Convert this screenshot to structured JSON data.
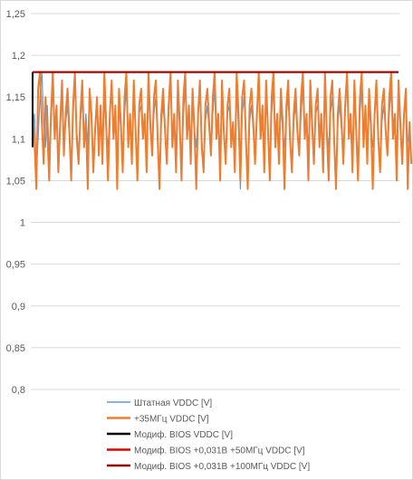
{
  "chart_data": {
    "type": "line",
    "title": "",
    "xlabel": "",
    "ylabel": "",
    "ylim": [
      0.8,
      1.25
    ],
    "ytick_labels": [
      "0,8",
      "0,85",
      "0,9",
      "0,95",
      "1",
      "1,05",
      "1,1",
      "1,15",
      "1,2",
      "1,25"
    ],
    "grid": "horizontal",
    "legend_position": "bottom",
    "n_points": 200,
    "series": [
      {
        "name": "Штатная VDDC [V]",
        "color": "#5b9bd5",
        "values": [
          1.11,
          1.13,
          1.06,
          1.1,
          1.15,
          1.18,
          1.12,
          1.09,
          1.14,
          1.08,
          1.12,
          1.16,
          1.1,
          1.13,
          1.07,
          1.11,
          1.15,
          1.09,
          1.12,
          1.14,
          1.1,
          1.06,
          1.13,
          1.17,
          1.11,
          1.08,
          1.12,
          1.15,
          1.1,
          1.13,
          1.09,
          1.16,
          1.12,
          1.07,
          1.11,
          1.14,
          1.1,
          1.13,
          1.08,
          1.15,
          1.11,
          1.09,
          1.13,
          1.17,
          1.1,
          1.12,
          1.06,
          1.14,
          1.11,
          1.08,
          1.13,
          1.16,
          1.1,
          1.12,
          1.09,
          1.15,
          1.11,
          1.07,
          1.13,
          1.14,
          1.1,
          1.12,
          1.08,
          1.16,
          1.11,
          1.09,
          1.13,
          1.15,
          1.1,
          1.06,
          1.12,
          1.14,
          1.11,
          1.08,
          1.13,
          1.17,
          1.1,
          1.12,
          1.09,
          1.15,
          1.11,
          1.07,
          1.13,
          1.16,
          1.1,
          1.12,
          1.08,
          1.14,
          1.11,
          1.09,
          1.13,
          1.15,
          1.1,
          1.06,
          1.12,
          1.14,
          1.11,
          1.08,
          1.13,
          1.16,
          1.1,
          1.12,
          1.09,
          1.15,
          1.11,
          1.07,
          1.13,
          1.14,
          1.1,
          1.12,
          1.08,
          1.16,
          1.11,
          1.04,
          1.13,
          1.15,
          1.1,
          1.06,
          1.12,
          1.14,
          1.11,
          1.08,
          1.13,
          1.17,
          1.1,
          1.12,
          1.09,
          1.15,
          1.11,
          1.07,
          1.13,
          1.16,
          1.1,
          1.12,
          1.08,
          1.14,
          1.11,
          1.09,
          1.13,
          1.15,
          1.1,
          1.06,
          1.12,
          1.14,
          1.11,
          1.08,
          1.13,
          1.16,
          1.1,
          1.12,
          1.09,
          1.15,
          1.11,
          1.07,
          1.13,
          1.14,
          1.1,
          1.12,
          1.08,
          1.16,
          1.11,
          1.09,
          1.13,
          1.15,
          1.1,
          1.06,
          1.12,
          1.14,
          1.11,
          1.08,
          1.13,
          1.17,
          1.1,
          1.12,
          1.09,
          1.15,
          1.11,
          1.07,
          1.13,
          1.16,
          1.1,
          1.12,
          1.08,
          1.14,
          1.11,
          1.09,
          1.13,
          1.15,
          1.1,
          1.06,
          1.12,
          1.14,
          1.11,
          1.08,
          1.13,
          1.16,
          1.1,
          1.12,
          1.09,
          1.15,
          1.11,
          1.07,
          1.13,
          1.14,
          1.1,
          1.09
        ]
      },
      {
        "name": "+35МГц VDDC [V]",
        "color": "#ed7d31",
        "values": [
          1.13,
          1.1,
          1.04,
          1.16,
          1.18,
          1.12,
          1.07,
          1.15,
          1.11,
          1.05,
          1.13,
          1.18,
          1.1,
          1.14,
          1.06,
          1.12,
          1.17,
          1.08,
          1.13,
          1.16,
          1.11,
          1.05,
          1.14,
          1.18,
          1.1,
          1.07,
          1.13,
          1.17,
          1.09,
          1.12,
          1.04,
          1.16,
          1.13,
          1.06,
          1.11,
          1.15,
          1.08,
          1.14,
          1.07,
          1.18,
          1.12,
          1.05,
          1.13,
          1.17,
          1.1,
          1.14,
          1.04,
          1.16,
          1.12,
          1.06,
          1.15,
          1.18,
          1.09,
          1.13,
          1.07,
          1.17,
          1.11,
          1.05,
          1.14,
          1.16,
          1.1,
          1.13,
          1.06,
          1.18,
          1.12,
          1.08,
          1.15,
          1.17,
          1.1,
          1.04,
          1.13,
          1.16,
          1.11,
          1.07,
          1.14,
          1.18,
          1.09,
          1.13,
          1.06,
          1.17,
          1.12,
          1.05,
          1.15,
          1.18,
          1.1,
          1.14,
          1.07,
          1.16,
          1.11,
          1.04,
          1.13,
          1.17,
          1.09,
          1.06,
          1.14,
          1.16,
          1.12,
          1.08,
          1.15,
          1.18,
          1.1,
          1.13,
          1.05,
          1.17,
          1.11,
          1.07,
          1.14,
          1.16,
          1.09,
          1.12,
          1.06,
          1.18,
          1.13,
          1.05,
          1.15,
          1.17,
          1.1,
          1.04,
          1.14,
          1.16,
          1.12,
          1.07,
          1.13,
          1.18,
          1.1,
          1.14,
          1.06,
          1.17,
          1.11,
          1.05,
          1.15,
          1.18,
          1.09,
          1.13,
          1.07,
          1.16,
          1.12,
          1.04,
          1.14,
          1.17,
          1.1,
          1.06,
          1.13,
          1.16,
          1.11,
          1.08,
          1.15,
          1.18,
          1.1,
          1.13,
          1.05,
          1.17,
          1.12,
          1.07,
          1.14,
          1.16,
          1.09,
          1.13,
          1.06,
          1.18,
          1.11,
          1.05,
          1.15,
          1.17,
          1.1,
          1.04,
          1.13,
          1.16,
          1.12,
          1.07,
          1.14,
          1.18,
          1.1,
          1.13,
          1.06,
          1.17,
          1.11,
          1.05,
          1.15,
          1.18,
          1.09,
          1.14,
          1.07,
          1.16,
          1.12,
          1.04,
          1.13,
          1.17,
          1.1,
          1.06,
          1.14,
          1.16,
          1.11,
          1.08,
          1.15,
          1.18,
          1.1,
          1.13,
          1.05,
          1.17,
          1.12,
          1.07,
          1.13,
          1.16,
          1.04,
          1.12,
          1.07
        ]
      },
      {
        "name": "Модиф. BIOS VDDC [V]",
        "color": "#000000",
        "values": [
          1.09,
          1.18
        ]
      },
      {
        "name": "Модиф. BIOS +0,031B +50МГц VDDC [V]",
        "color": "#e00000",
        "values": [
          1.18,
          1.18
        ]
      },
      {
        "name": "Модиф. BIOS +0,031B +100МГц VDDC [V]",
        "color": "#a00000",
        "values": [
          1.18,
          1.18
        ]
      }
    ]
  }
}
